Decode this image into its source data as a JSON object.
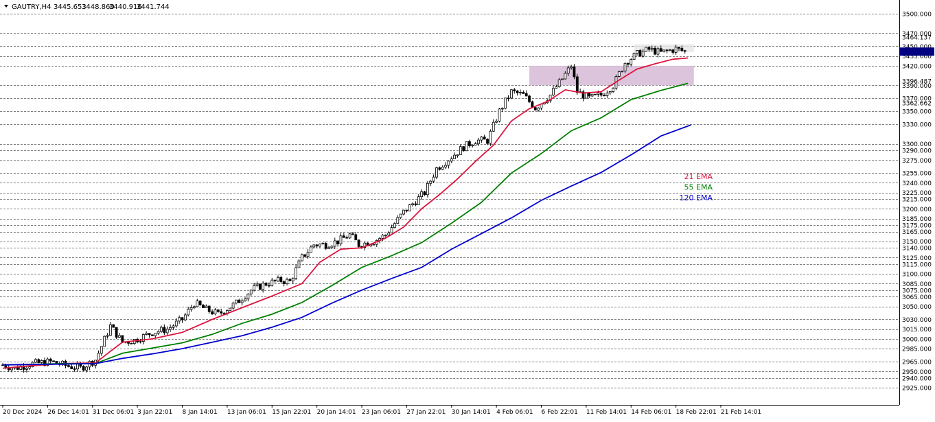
{
  "header": {
    "symbol_label": "GAUTRY,H4",
    "open": "3445.653",
    "high": "3448.860",
    "low": "3440.916",
    "close": "3441.744"
  },
  "colors": {
    "background": "#ffffff",
    "grid": "#000000",
    "candle_body": "#000000",
    "ema21": "#dc143c",
    "ema55": "#008000",
    "ema120": "#0000cd",
    "zone_fill": "#d8bfd8",
    "price_marker": "#000080"
  },
  "legend": [
    {
      "label": "21 EMA",
      "color": "#dc143c"
    },
    {
      "label": "55 EMA",
      "color": "#008000"
    },
    {
      "label": "120 EMA",
      "color": "#0000cd"
    }
  ],
  "chart_data": {
    "type": "line",
    "title": "GAUTRY,H4",
    "x_axis_labels": [
      "20 Dec 2024",
      "26 Dec 14:01",
      "31 Dec 06:01",
      "3 Jan 22:01",
      "8 Jan 14:01",
      "13 Jan 06:01",
      "15 Jan 22:01",
      "20 Jan 14:01",
      "23 Jan 06:01",
      "27 Jan 22:01",
      "30 Jan 14:01",
      "4 Feb 06:01",
      "6 Feb 22:01",
      "11 Feb 14:01",
      "14 Feb 06:01",
      "18 Feb 22:01",
      "21 Feb 14:01"
    ],
    "y_axis_labels": [
      "3500.000",
      "3470.000",
      "3464.137",
      "3450.000",
      "3435.000",
      "3420.000",
      "3396.487",
      "3390.000",
      "3370.000",
      "3362.662",
      "3350.000",
      "3330.000",
      "3300.000",
      "3290.000",
      "3275.000",
      "3255.000",
      "3240.000",
      "3225.000",
      "3215.000",
      "3200.000",
      "3185.000",
      "3175.000",
      "3165.000",
      "3150.000",
      "3140.000",
      "3125.000",
      "3115.000",
      "3100.000",
      "3085.000",
      "3075.000",
      "3065.000",
      "3050.000",
      "3030.000",
      "3015.000",
      "3000.000",
      "2985.000",
      "2965.000",
      "2950.000",
      "2940.000",
      "2925.000"
    ],
    "y_label_values": [
      3500,
      3470,
      3464.137,
      3450,
      3435,
      3420,
      3396.487,
      3390,
      3370,
      3362.662,
      3350,
      3330,
      3300,
      3290,
      3275,
      3255,
      3240,
      3225,
      3215,
      3200,
      3185,
      3175,
      3165,
      3150,
      3140,
      3125,
      3115,
      3100,
      3085,
      3075,
      3065,
      3050,
      3030,
      3015,
      3000,
      2985,
      2965,
      2950,
      2940,
      2925
    ],
    "grid_levels": [
      3500,
      3470,
      3450,
      3435,
      3420,
      3390,
      3370,
      3350,
      3330,
      3300,
      3290,
      3275,
      3255,
      3240,
      3225,
      3215,
      3200,
      3185,
      3175,
      3165,
      3150,
      3140,
      3125,
      3115,
      3100,
      3085,
      3075,
      3065,
      3050,
      3030,
      3015,
      3000,
      2985,
      2965,
      2950,
      2940,
      2925
    ],
    "ylim": [
      2918,
      3510
    ],
    "x_bars": 240,
    "price_series": {
      "name": "GAUTRY,H4",
      "points": [
        [
          0,
          2960
        ],
        [
          4,
          2955
        ],
        [
          10,
          2962
        ],
        [
          16,
          2965
        ],
        [
          22,
          2958
        ],
        [
          26,
          2955
        ],
        [
          31,
          2968
        ],
        [
          36,
          3020
        ],
        [
          40,
          2995
        ],
        [
          44,
          2998
        ],
        [
          50,
          3010
        ],
        [
          55,
          3015
        ],
        [
          60,
          3030
        ],
        [
          64,
          3055
        ],
        [
          68,
          3045
        ],
        [
          72,
          3038
        ],
        [
          78,
          3055
        ],
        [
          83,
          3075
        ],
        [
          88,
          3085
        ],
        [
          93,
          3090
        ],
        [
          96,
          3088
        ],
        [
          100,
          3125
        ],
        [
          104,
          3145
        ],
        [
          108,
          3145
        ],
        [
          112,
          3150
        ],
        [
          116,
          3160
        ],
        [
          119,
          3145
        ],
        [
          124,
          3150
        ],
        [
          128,
          3160
        ],
        [
          134,
          3195
        ],
        [
          138,
          3212
        ],
        [
          141,
          3225
        ],
        [
          145,
          3262
        ],
        [
          150,
          3280
        ],
        [
          154,
          3295
        ],
        [
          158,
          3305
        ],
        [
          162,
          3305
        ],
        [
          166,
          3350
        ],
        [
          170,
          3380
        ],
        [
          174,
          3375
        ],
        [
          178,
          3355
        ],
        [
          183,
          3375
        ],
        [
          187,
          3400
        ],
        [
          190,
          3420
        ],
        [
          192,
          3380
        ],
        [
          196,
          3370
        ],
        [
          200,
          3375
        ],
        [
          204,
          3390
        ],
        [
          208,
          3425
        ],
        [
          212,
          3438
        ],
        [
          216,
          3445
        ],
        [
          220,
          3440
        ],
        [
          225,
          3446
        ],
        [
          228,
          3442
        ]
      ]
    },
    "series": [
      {
        "name": "21 EMA",
        "points": [
          [
            0,
            2955
          ],
          [
            10,
            2959
          ],
          [
            20,
            2962
          ],
          [
            31,
            2963
          ],
          [
            36,
            2981
          ],
          [
            40,
            2995
          ],
          [
            50,
            3000
          ],
          [
            60,
            3010
          ],
          [
            70,
            3030
          ],
          [
            80,
            3048
          ],
          [
            90,
            3066
          ],
          [
            100,
            3085
          ],
          [
            106,
            3118
          ],
          [
            113,
            3138
          ],
          [
            120,
            3140
          ],
          [
            128,
            3155
          ],
          [
            134,
            3172
          ],
          [
            140,
            3200
          ],
          [
            146,
            3222
          ],
          [
            152,
            3246
          ],
          [
            158,
            3273
          ],
          [
            164,
            3298
          ],
          [
            170,
            3335
          ],
          [
            176,
            3354
          ],
          [
            182,
            3365
          ],
          [
            188,
            3383
          ],
          [
            194,
            3378
          ],
          [
            200,
            3380
          ],
          [
            206,
            3398
          ],
          [
            212,
            3415
          ],
          [
            218,
            3423
          ],
          [
            224,
            3430
          ],
          [
            229,
            3432
          ]
        ]
      },
      {
        "name": "55 EMA",
        "points": [
          [
            0,
            2960
          ],
          [
            20,
            2962
          ],
          [
            31,
            2962
          ],
          [
            40,
            2978
          ],
          [
            50,
            2986
          ],
          [
            60,
            2994
          ],
          [
            70,
            3007
          ],
          [
            80,
            3024
          ],
          [
            90,
            3038
          ],
          [
            100,
            3056
          ],
          [
            110,
            3082
          ],
          [
            120,
            3110
          ],
          [
            130,
            3128
          ],
          [
            140,
            3148
          ],
          [
            150,
            3178
          ],
          [
            160,
            3210
          ],
          [
            170,
            3255
          ],
          [
            180,
            3285
          ],
          [
            190,
            3320
          ],
          [
            200,
            3340
          ],
          [
            210,
            3368
          ],
          [
            220,
            3382
          ],
          [
            229,
            3393
          ]
        ]
      },
      {
        "name": "120 EMA",
        "points": [
          [
            0,
            2960
          ],
          [
            31,
            2962
          ],
          [
            40,
            2970
          ],
          [
            50,
            2977
          ],
          [
            60,
            2985
          ],
          [
            70,
            2995
          ],
          [
            80,
            3005
          ],
          [
            90,
            3018
          ],
          [
            100,
            3033
          ],
          [
            110,
            3055
          ],
          [
            120,
            3075
          ],
          [
            130,
            3093
          ],
          [
            140,
            3110
          ],
          [
            150,
            3138
          ],
          [
            160,
            3162
          ],
          [
            170,
            3186
          ],
          [
            180,
            3213
          ],
          [
            190,
            3235
          ],
          [
            200,
            3256
          ],
          [
            210,
            3283
          ],
          [
            220,
            3312
          ],
          [
            230,
            3329
          ]
        ]
      }
    ],
    "resistance_zone": {
      "x_start_bar": 176,
      "x_end_bar": 231,
      "y_low": 3390,
      "y_high": 3420
    },
    "top_zone": {
      "x_start_bar": 211,
      "x_end_bar": 231,
      "y_low": 3441,
      "y_high": 3453
    },
    "last_price": 3441.744,
    "grid": true
  }
}
